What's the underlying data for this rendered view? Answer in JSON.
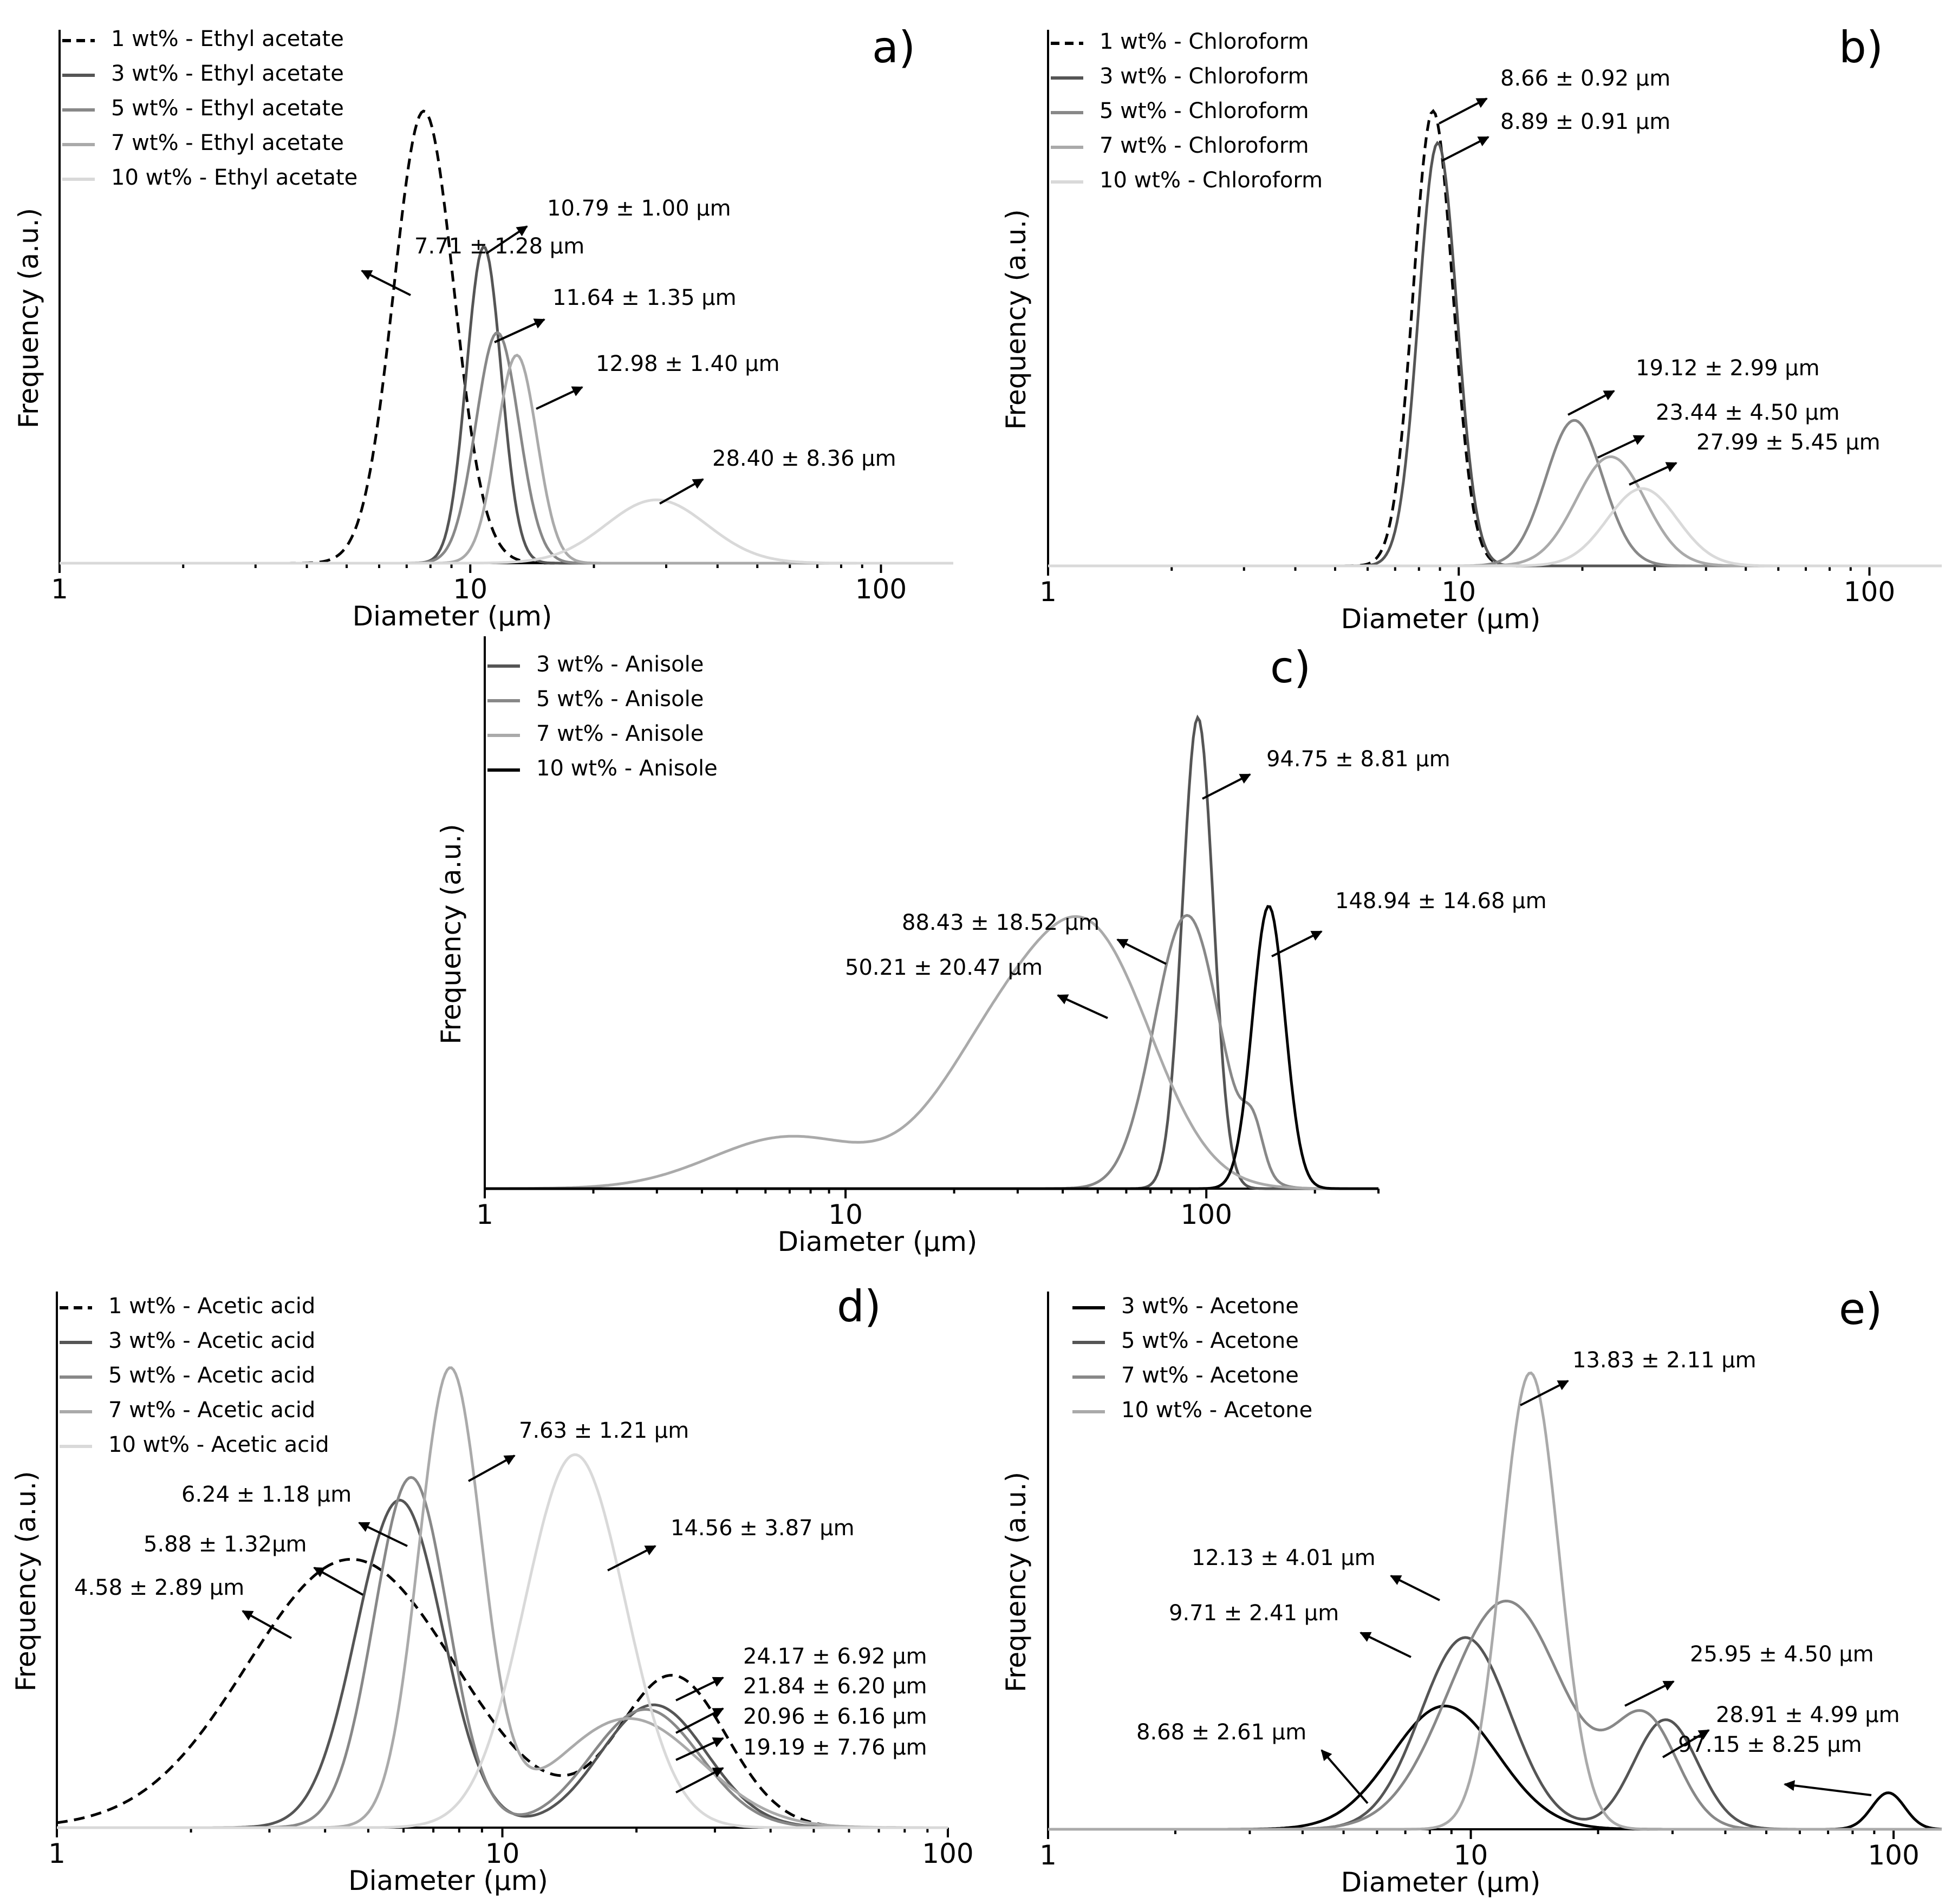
{
  "chart_data": [
    {
      "type": "line",
      "panel": "a)",
      "xscale": "log",
      "xlim": [
        1,
        150
      ],
      "xticks": [
        "1",
        "10",
        "100"
      ],
      "xlabel": "Diameter (µm)",
      "ylabel": "Frequency (a.u.)",
      "legend_position": "top-left",
      "series": [
        {
          "name": "1 wt% - Ethyl acetate",
          "color": "#000000",
          "dashed": true,
          "peaks": [
            {
              "mean": 7.71,
              "sd": 1.28,
              "height": 1.0
            }
          ]
        },
        {
          "name": "3 wt% - Ethyl acetate",
          "color": "#555555",
          "dashed": false,
          "peaks": [
            {
              "mean": 10.79,
              "sd": 1.0,
              "height": 0.7
            }
          ]
        },
        {
          "name": "5 wt% - Ethyl acetate",
          "color": "#888888",
          "dashed": false,
          "peaks": [
            {
              "mean": 11.64,
              "sd": 1.35,
              "height": 0.51
            }
          ]
        },
        {
          "name": "7 wt% - Ethyl acetate",
          "color": "#aaaaaa",
          "dashed": false,
          "peaks": [
            {
              "mean": 12.98,
              "sd": 1.4,
              "height": 0.46
            }
          ]
        },
        {
          "name": "10 wt% - Ethyl acetate",
          "color": "#d9d9d9",
          "dashed": false,
          "peaks": [
            {
              "mean": 28.4,
              "sd": 8.36,
              "height": 0.14
            }
          ]
        }
      ],
      "annotations": [
        "7.71 ± 1.28 µm",
        "10.79 ± 1.00 µm",
        "11.64 ± 1.35 µm",
        "12.98 ± 1.40 µm",
        "28.40 ± 8.36 µm"
      ]
    },
    {
      "type": "line",
      "panel": "b)",
      "xscale": "log",
      "xlim": [
        1,
        150
      ],
      "xticks": [
        "1",
        "10",
        "100"
      ],
      "xlabel": "Diameter (µm)",
      "ylabel": "Frequency (a.u.)",
      "legend_position": "top-left",
      "series": [
        {
          "name": "1 wt% - Chloroform",
          "color": "#000000",
          "dashed": true,
          "peaks": [
            {
              "mean": 8.66,
              "sd": 0.92,
              "height": 1.0
            }
          ]
        },
        {
          "name": "3 wt% - Chloroform",
          "color": "#555555",
          "dashed": false,
          "peaks": [
            {
              "mean": 8.89,
              "sd": 0.91,
              "height": 0.93
            }
          ]
        },
        {
          "name": "5 wt% - Chloroform",
          "color": "#888888",
          "dashed": false,
          "peaks": [
            {
              "mean": 19.12,
              "sd": 2.99,
              "height": 0.32
            }
          ]
        },
        {
          "name": "7 wt% - Chloroform",
          "color": "#aaaaaa",
          "dashed": false,
          "peaks": [
            {
              "mean": 23.44,
              "sd": 4.5,
              "height": 0.24
            }
          ]
        },
        {
          "name": "10 wt% - Chloroform",
          "color": "#d9d9d9",
          "dashed": false,
          "peaks": [
            {
              "mean": 27.99,
              "sd": 5.45,
              "height": 0.17
            }
          ]
        }
      ],
      "annotations": [
        "8.66 ± 0.92 µm",
        "8.89 ± 0.91 µm",
        "19.12 ± 2.99 µm",
        "23.44 ± 4.50 µm",
        "27.99 ± 5.45 µm"
      ]
    },
    {
      "type": "line",
      "panel": "c)",
      "xscale": "log",
      "xlim": [
        1,
        300
      ],
      "xticks": [
        "1",
        "10",
        "100"
      ],
      "xlabel": "Diameter (µm)",
      "ylabel": "Frequency (a.u.)",
      "legend_position": "top-left",
      "series": [
        {
          "name": "3 wt% - Anisole",
          "color": "#555555",
          "dashed": false,
          "peaks": [
            {
              "mean": 94.75,
              "sd": 8.81,
              "height": 1.0
            }
          ]
        },
        {
          "name": "5 wt% - Anisole",
          "color": "#888888",
          "dashed": false,
          "peaks": [
            {
              "mean": 88.43,
              "sd": 18.52,
              "height": 0.58
            },
            {
              "mean": 135,
              "sd": 8,
              "height": 0.09
            }
          ]
        },
        {
          "name": "7 wt% - Anisole",
          "color": "#aaaaaa",
          "dashed": false,
          "peaks": [
            {
              "mean": 50.21,
              "sd": 20.47,
              "height": 0.46
            },
            {
              "mean": 27,
              "sd": 12,
              "height": 0.3
            },
            {
              "mean": 7,
              "sd": 4,
              "height": 0.11
            }
          ]
        },
        {
          "name": "10 wt% - Anisole",
          "color": "#000000",
          "dashed": false,
          "peaks": [
            {
              "mean": 148.94,
              "sd": 14.68,
              "height": 0.6
            }
          ]
        }
      ],
      "annotations": [
        "94.75 ± 8.81 µm",
        "148.94 ± 14.68 µm",
        "88.43 ± 18.52 µm",
        "50.21 ± 20.47 µm"
      ]
    },
    {
      "type": "line",
      "panel": "d)",
      "xscale": "log",
      "xlim": [
        1,
        100
      ],
      "xticks": [
        "1",
        "10",
        "100"
      ],
      "xlabel": "Diameter (µm)",
      "ylabel": "Frequency (a.u.)",
      "legend_position": "top-left",
      "series": [
        {
          "name": "1 wt% - Acetic acid",
          "color": "#000000",
          "dashed": true,
          "peaks": [
            {
              "mean": 4.58,
              "sd": 2.89,
              "height": 0.59
            },
            {
              "mean": 24.17,
              "sd": 6.92,
              "height": 0.33
            }
          ]
        },
        {
          "name": "3 wt% - Acetic acid",
          "color": "#555555",
          "dashed": false,
          "peaks": [
            {
              "mean": 5.88,
              "sd": 1.32,
              "height": 0.72
            },
            {
              "mean": 21.84,
              "sd": 6.2,
              "height": 0.27
            }
          ]
        },
        {
          "name": "5 wt% - Acetic acid",
          "color": "#888888",
          "dashed": false,
          "peaks": [
            {
              "mean": 6.24,
              "sd": 1.18,
              "height": 0.77
            },
            {
              "mean": 20.96,
              "sd": 6.16,
              "height": 0.26
            }
          ]
        },
        {
          "name": "7 wt% - Acetic acid",
          "color": "#aaaaaa",
          "dashed": false,
          "peaks": [
            {
              "mean": 7.63,
              "sd": 1.21,
              "height": 1.0
            },
            {
              "mean": 19.19,
              "sd": 7.76,
              "height": 0.24
            }
          ]
        },
        {
          "name": "10 wt% - Acetic acid",
          "color": "#d9d9d9",
          "dashed": false,
          "peaks": [
            {
              "mean": 14.56,
              "sd": 3.87,
              "height": 0.82
            }
          ]
        }
      ],
      "annotations": [
        "7.63 ± 1.21 µm",
        "6.24 ± 1.18 µm",
        "14.56 ± 3.87 µm",
        "5.88 ± 1.32µm",
        "4.58 ± 2.89 µm",
        "24.17 ± 6.92 µm",
        "21.84 ± 6.20 µm",
        "20.96 ± 6.16 µm",
        "19.19 ± 7.76 µm"
      ]
    },
    {
      "type": "line",
      "panel": "e)",
      "xscale": "log",
      "xlim": [
        1,
        130
      ],
      "xticks": [
        "1",
        "10",
        "100"
      ],
      "xlabel": "Diameter (µm)",
      "ylabel": "Frequency (a.u.)",
      "legend_position": "top-left",
      "series": [
        {
          "name": "3 wt% - Acetone",
          "color": "#000000",
          "dashed": false,
          "peaks": [
            {
              "mean": 8.68,
              "sd": 2.61,
              "height": 0.27
            },
            {
              "mean": 97.15,
              "sd": 8.25,
              "height": 0.08
            }
          ]
        },
        {
          "name": "5 wt% - Acetone",
          "color": "#555555",
          "dashed": false,
          "peaks": [
            {
              "mean": 9.71,
              "sd": 2.41,
              "height": 0.42
            },
            {
              "mean": 28.91,
              "sd": 4.99,
              "height": 0.24
            }
          ]
        },
        {
          "name": "7 wt% - Acetone",
          "color": "#888888",
          "dashed": false,
          "peaks": [
            {
              "mean": 12.13,
              "sd": 4.01,
              "height": 0.5
            },
            {
              "mean": 25.95,
              "sd": 4.5,
              "height": 0.23
            }
          ]
        },
        {
          "name": "10 wt% - Acetone",
          "color": "#aaaaaa",
          "dashed": false,
          "peaks": [
            {
              "mean": 13.83,
              "sd": 2.11,
              "height": 1.0
            }
          ]
        }
      ],
      "annotations": [
        "13.83 ± 2.11 µm",
        "12.13 ± 4.01 µm",
        "9.71 ± 2.41 µm",
        "25.95 ± 4.50 µm",
        "28.91 ± 4.99 µm",
        "97.15 ± 8.25 µm",
        "8.68 ± 2.61 µm"
      ]
    }
  ]
}
